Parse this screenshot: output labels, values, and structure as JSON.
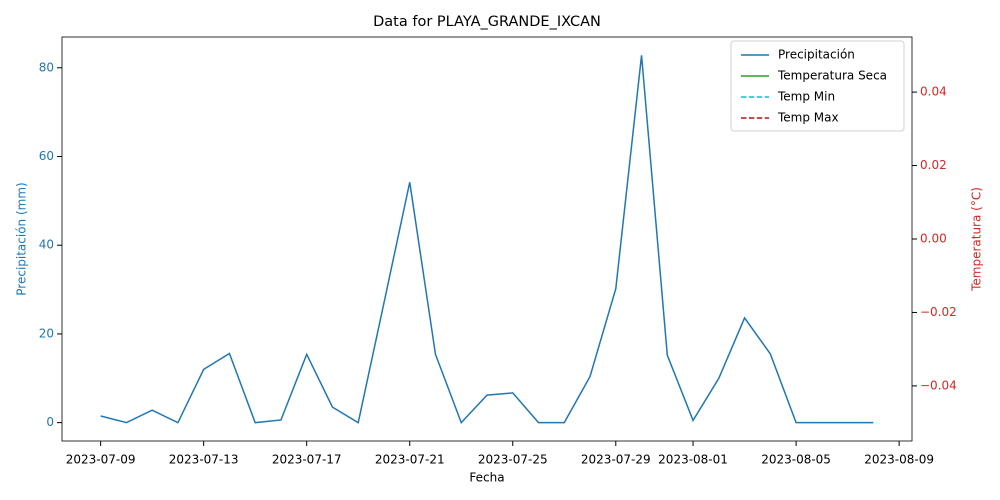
{
  "chart_data": {
    "type": "line",
    "title": "Data for PLAYA_GRANDE_IXCAN",
    "x_label": "Fecha",
    "y_label": "Precipitación (mm)",
    "y2_label": "Temperatura (°C)",
    "x": [
      "2023-07-09",
      "2023-07-10",
      "2023-07-11",
      "2023-07-12",
      "2023-07-13",
      "2023-07-14",
      "2023-07-15",
      "2023-07-16",
      "2023-07-17",
      "2023-07-18",
      "2023-07-19",
      "2023-07-20",
      "2023-07-21",
      "2023-07-22",
      "2023-07-23",
      "2023-07-24",
      "2023-07-25",
      "2023-07-26",
      "2023-07-27",
      "2023-07-28",
      "2023-07-29",
      "2023-07-30",
      "2023-07-31",
      "2023-08-01",
      "2023-08-02",
      "2023-08-03",
      "2023-08-04",
      "2023-08-05",
      "2023-08-06",
      "2023-08-07",
      "2023-08-08"
    ],
    "series": [
      {
        "name": "Precipitación",
        "color": "#1f77b4",
        "linestyle": "solid",
        "axis": "y",
        "values": [
          1.5,
          0,
          2.8,
          0,
          12,
          15.6,
          0,
          0.6,
          15.4,
          3.5,
          0,
          27,
          54.2,
          15.4,
          0,
          6.2,
          6.7,
          0,
          0,
          10.4,
          30.2,
          82.8,
          15.2,
          0.5,
          10,
          23.6,
          15.5,
          0,
          0,
          0,
          0
        ]
      },
      {
        "name": "Temperatura Seca",
        "color": "#2ca02c",
        "linestyle": "solid",
        "axis": "y2",
        "values": [
          null,
          null,
          null,
          null,
          null,
          null,
          null,
          null,
          null,
          null,
          null,
          null,
          null,
          null,
          null,
          null,
          null,
          null,
          null,
          null,
          null,
          null,
          null,
          null,
          null,
          null,
          null,
          null,
          null,
          null,
          null
        ]
      },
      {
        "name": "Temp Min",
        "color": "#17becf",
        "linestyle": "dashed",
        "axis": "y2",
        "values": [
          null,
          null,
          null,
          null,
          null,
          null,
          null,
          null,
          null,
          null,
          null,
          null,
          null,
          null,
          null,
          null,
          null,
          null,
          null,
          null,
          null,
          null,
          null,
          null,
          null,
          null,
          null,
          null,
          null,
          null,
          null
        ]
      },
      {
        "name": "Temp Max",
        "color": "#a31c1c",
        "linestyle": "dashed",
        "axis": "y2",
        "values": [
          null,
          null,
          null,
          null,
          null,
          null,
          null,
          null,
          null,
          null,
          null,
          null,
          null,
          null,
          null,
          null,
          null,
          null,
          null,
          null,
          null,
          null,
          null,
          null,
          null,
          null,
          null,
          null,
          null,
          null,
          null
        ]
      }
    ],
    "xlim": [
      "2023-07-07T12:00:00Z",
      "2023-08-09T12:00:00Z"
    ],
    "xticks": [
      "2023-07-09",
      "2023-07-13",
      "2023-07-17",
      "2023-07-21",
      "2023-07-25",
      "2023-07-29",
      "2023-08-01",
      "2023-08-05",
      "2023-08-09"
    ],
    "ylim": [
      -4.14,
      86.94
    ],
    "yticks": [
      0,
      20,
      40,
      60,
      80
    ],
    "y_color": "#1f77b4",
    "y2lim": [
      -0.055,
      0.055
    ],
    "y2ticks": [
      {
        "value": -0.04,
        "label": "−0.04"
      },
      {
        "value": -0.02,
        "label": "−0.02"
      },
      {
        "value": 0,
        "label": "0.00"
      },
      0.02,
      0.04
    ],
    "y2_color": "#d62728",
    "grid": false,
    "legend": "upper right"
  }
}
